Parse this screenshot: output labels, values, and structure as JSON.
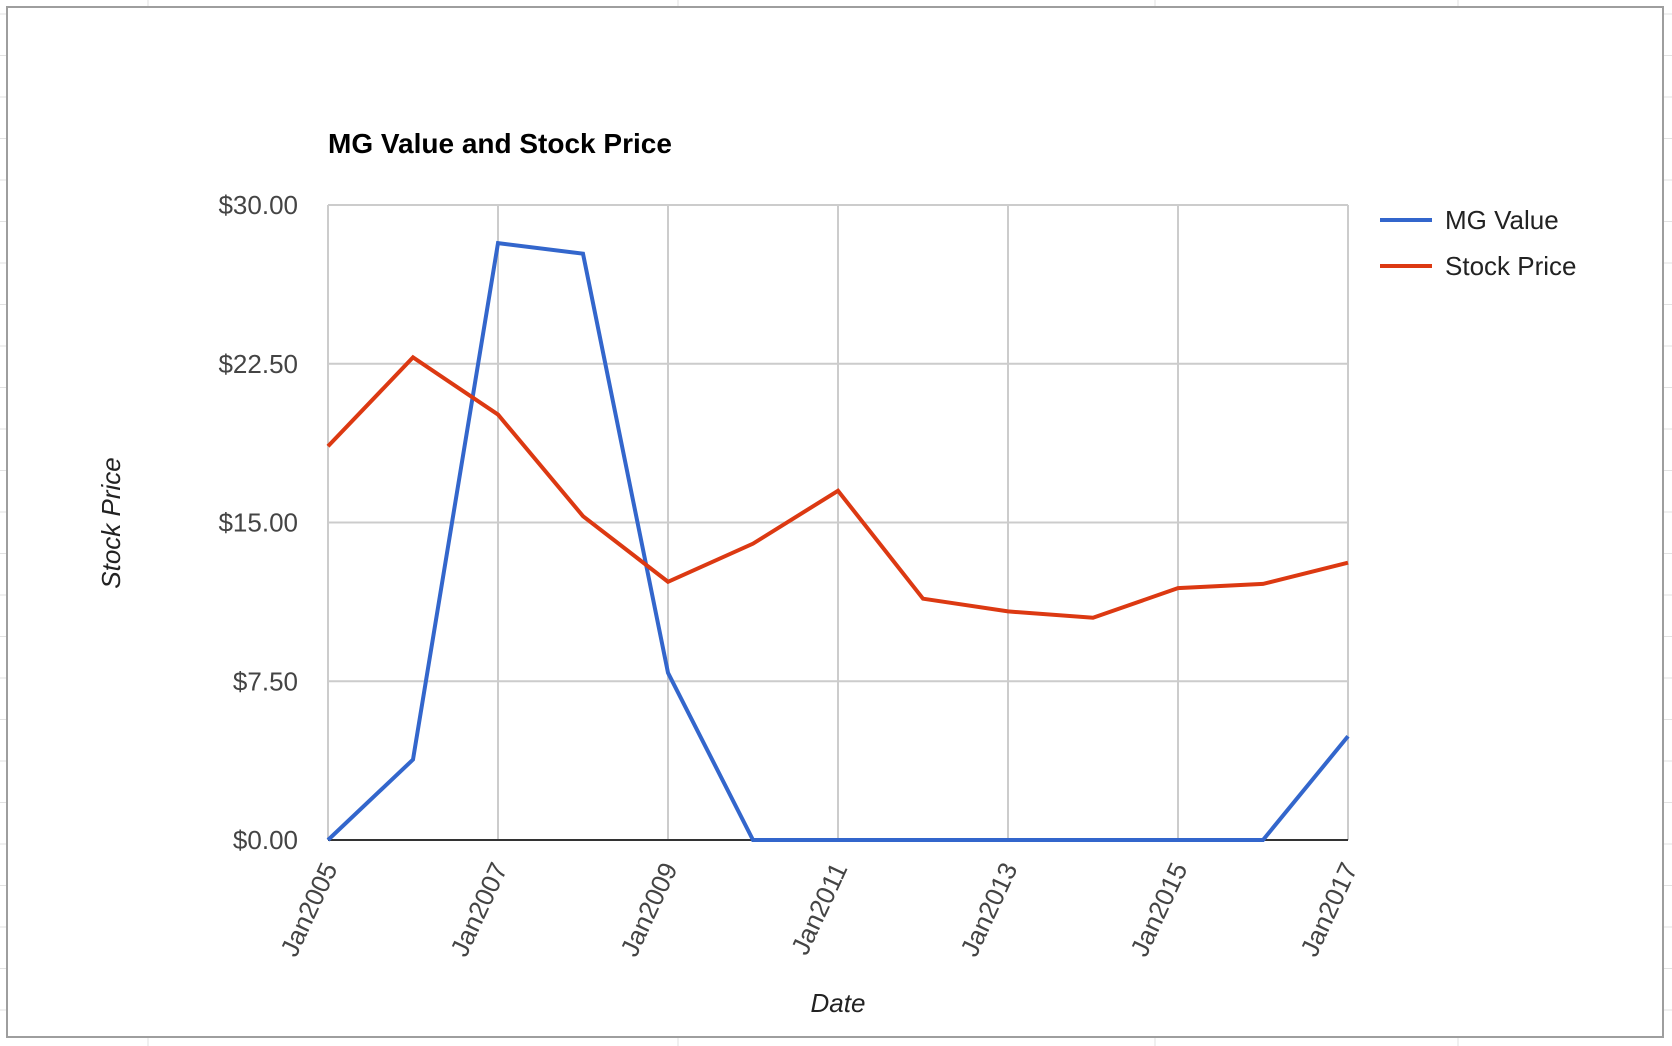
{
  "chart_data": {
    "type": "line",
    "title": "MG Value and Stock Price",
    "xlabel": "Date",
    "ylabel": "Stock Price",
    "x": [
      2005,
      2006,
      2007,
      2008,
      2009,
      2010,
      2011,
      2012,
      2013,
      2014,
      2015,
      2016,
      2017
    ],
    "x_ticks": [
      2005,
      2007,
      2009,
      2011,
      2013,
      2015,
      2017
    ],
    "x_tick_labels": [
      "Jan2005",
      "Jan2007",
      "Jan2009",
      "Jan2011",
      "Jan2013",
      "Jan2015",
      "Jan2017"
    ],
    "ylim": [
      0,
      30
    ],
    "y_ticks": [
      0,
      7.5,
      15,
      22.5,
      30
    ],
    "y_tick_labels": [
      "$0.00",
      "$7.50",
      "$15.00",
      "$22.50",
      "$30.00"
    ],
    "grid": true,
    "legend_position": "right",
    "series": [
      {
        "name": "MG Value",
        "color": "#3366cc",
        "values": [
          0,
          3.8,
          28.2,
          27.7,
          7.9,
          0,
          0,
          0,
          0,
          0,
          0,
          0,
          4.9
        ]
      },
      {
        "name": "Stock Price",
        "color": "#dc3912",
        "values": [
          18.6,
          22.8,
          20.1,
          15.3,
          12.2,
          14.0,
          16.5,
          11.4,
          10.8,
          10.5,
          11.9,
          12.1,
          13.1
        ]
      }
    ]
  }
}
